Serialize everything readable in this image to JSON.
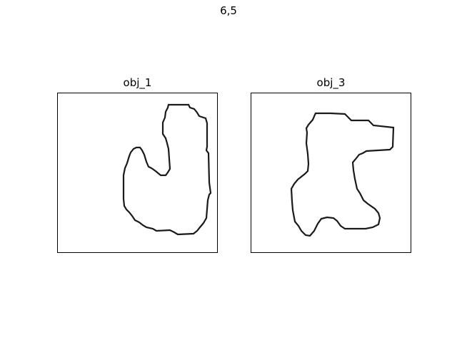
{
  "figure": {
    "title": "6,5"
  },
  "panels": [
    {
      "title": "obj_1"
    },
    {
      "title": "obj_3"
    }
  ],
  "colors": {
    "outline": "#1a1a1a",
    "frame": "#000000",
    "background": "#ffffff"
  }
}
